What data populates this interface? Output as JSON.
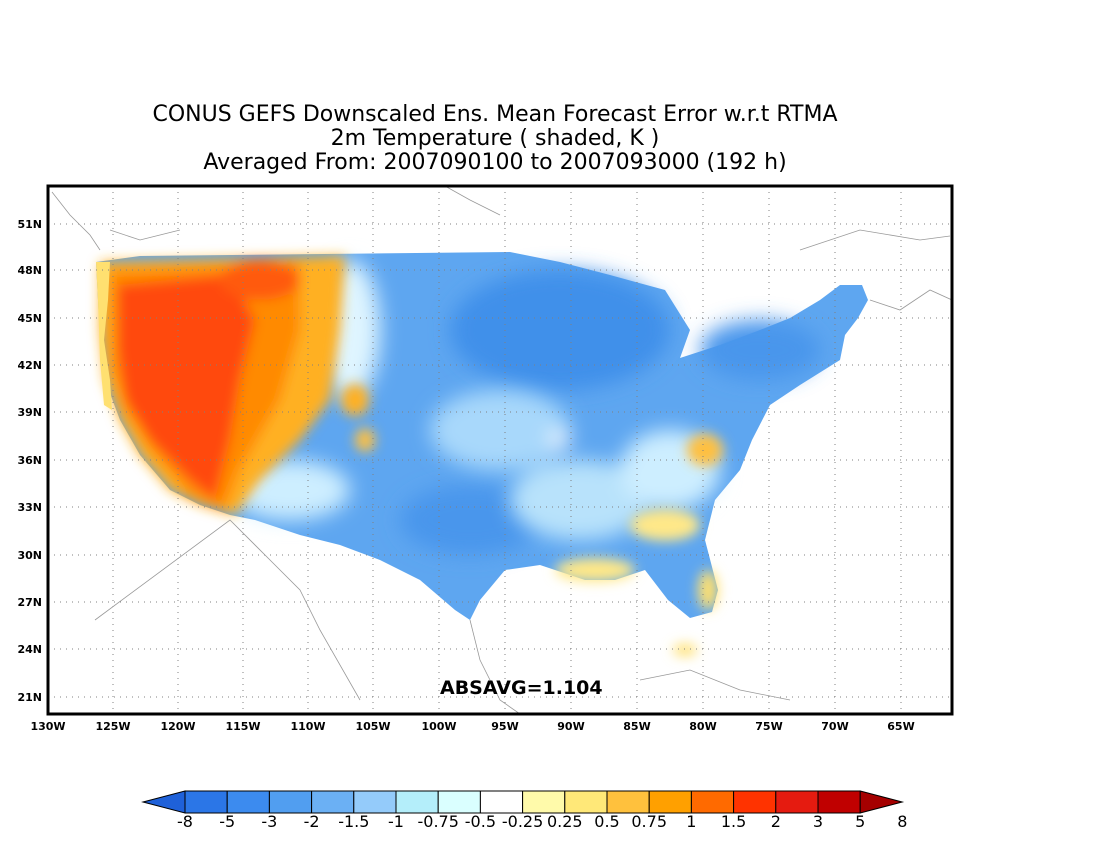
{
  "title": {
    "line1": "CONUS GEFS Downscaled Ens. Mean Forecast Error w.r.t RTMA",
    "line2": "2m Temperature ( shaded, K )",
    "line3": "Averaged From: 2007090100 to 2007093000 (192 h)"
  },
  "stat_label": "ABSAVG=1.104",
  "lat_labels": [
    "51N",
    "48N",
    "45N",
    "42N",
    "39N",
    "36N",
    "33N",
    "30N",
    "27N",
    "24N",
    "21N"
  ],
  "lon_labels": [
    "130W",
    "125W",
    "120W",
    "115W",
    "110W",
    "105W",
    "100W",
    "95W",
    "90W",
    "85W",
    "80W",
    "75W",
    "70W",
    "65W"
  ],
  "colorbar": {
    "labels": [
      "-8",
      "-5",
      "-3",
      "-2",
      "-1.5",
      "-1",
      "-0.75",
      "-0.5",
      "-0.25",
      "0.25",
      "0.5",
      "0.75",
      "1",
      "1.5",
      "2",
      "3",
      "5",
      "8"
    ],
    "colors": [
      "#1f61d9",
      "#2b76e7",
      "#3c8bef",
      "#519ef0",
      "#6bb0f4",
      "#94cbfa",
      "#b4eefa",
      "#daffff",
      "#ffffff",
      "#fffaaa",
      "#ffe878",
      "#ffc13d",
      "#ffa000",
      "#ff6a00",
      "#ff3300",
      "#e51b10",
      "#c00000",
      "#a50000"
    ]
  },
  "colors": {
    "warm_strong": "#ff4a0a",
    "warm": "#ff9a00",
    "warm_light": "#ffd050",
    "cool": "#5aa4f0",
    "cool_light": "#a8d8fb",
    "cool_pale": "#dff5ff",
    "map_lines": "#999999"
  }
}
